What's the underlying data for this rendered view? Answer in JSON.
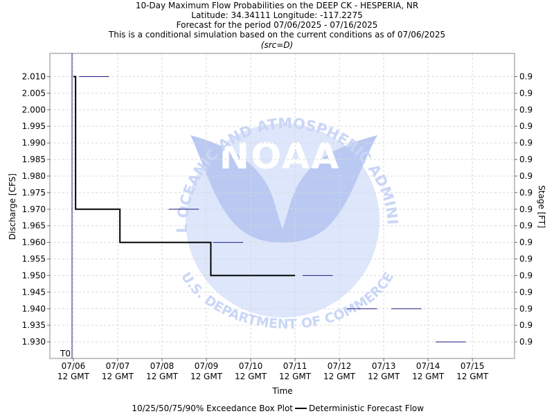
{
  "chart_data": {
    "type": "line",
    "title_lines": [
      "10-Day Maximum Flow Probabilities on the DEEP CK - HESPERIA, NR",
      "Latitude: 34.34111 Longitude: -117.2275",
      "Forecast for the period 07/06/2025 - 07/16/2025",
      "This is a conditional simulation based on the current conditions as of 07/06/2025",
      "(src=D)"
    ],
    "xlabel": "Time",
    "ylabel": "Discharge [CFS]",
    "y2label": "Stage [FT]",
    "ylim": [
      1.925,
      2.017
    ],
    "yticks": [
      1.93,
      1.935,
      1.94,
      1.945,
      1.95,
      1.955,
      1.96,
      1.965,
      1.97,
      1.975,
      1.98,
      1.985,
      1.99,
      1.995,
      2.0,
      2.005,
      2.01
    ],
    "ytick_labels": [
      "1.930",
      "1.935",
      "1.940",
      "1.945",
      "1.950",
      "1.955",
      "1.960",
      "1.965",
      "1.970",
      "1.975",
      "1.980",
      "1.985",
      "1.990",
      "1.995",
      "2.000",
      "2.005",
      "2.010"
    ],
    "y2tick_label": "0.9",
    "xlim": [
      -0.53,
      9.95
    ],
    "xticks": [
      0,
      1,
      2,
      3,
      4,
      5,
      6,
      7,
      8,
      9
    ],
    "xtick_labels": [
      [
        "07/06",
        "12 GMT"
      ],
      [
        "07/07",
        "12 GMT"
      ],
      [
        "07/08",
        "12 GMT"
      ],
      [
        "07/09",
        "12 GMT"
      ],
      [
        "07/10",
        "12 GMT"
      ],
      [
        "07/11",
        "12 GMT"
      ],
      [
        "07/12",
        "12 GMT"
      ],
      [
        "07/13",
        "12 GMT"
      ],
      [
        "07/14",
        "12 GMT"
      ],
      [
        "07/15",
        "12 GMT"
      ]
    ],
    "t0_label": "T0",
    "t0_x": -0.03,
    "grid": true,
    "series": [
      {
        "name": "Deterministic Forecast Flow",
        "color": "#000000",
        "x": [
          0.0,
          0.05,
          0.05,
          1.05,
          1.05,
          2.05,
          2.05,
          3.1,
          3.1,
          5.0
        ],
        "y": [
          2.01,
          2.01,
          1.97,
          1.97,
          1.96,
          1.96,
          1.96,
          1.96,
          1.95,
          1.95
        ]
      }
    ],
    "boxplot": {
      "name": "10/25/50/75/90% Exceedance Box Plot",
      "color": "#1a1a80",
      "segments": [
        {
          "x0": 0.13,
          "x1": 0.8,
          "y": 2.01
        },
        {
          "x0": 2.15,
          "x1": 2.83,
          "y": 1.97
        },
        {
          "x0": 3.15,
          "x1": 3.83,
          "y": 1.96
        },
        {
          "x0": 5.17,
          "x1": 5.85,
          "y": 1.95
        },
        {
          "x0": 6.17,
          "x1": 6.85,
          "y": 1.94
        },
        {
          "x0": 7.17,
          "x1": 7.85,
          "y": 1.94
        },
        {
          "x0": 8.17,
          "x1": 8.85,
          "y": 1.93
        }
      ]
    },
    "legend_position": "bottom-center"
  },
  "watermark": {
    "logo_text": "NOAA",
    "ring_text": "NATIONAL OCEANIC AND ATMOSPHERIC ADMINISTRATION",
    "bottom_text": "U.S. DEPARTMENT OF COMMERCE",
    "color": "#c9d6f7"
  }
}
